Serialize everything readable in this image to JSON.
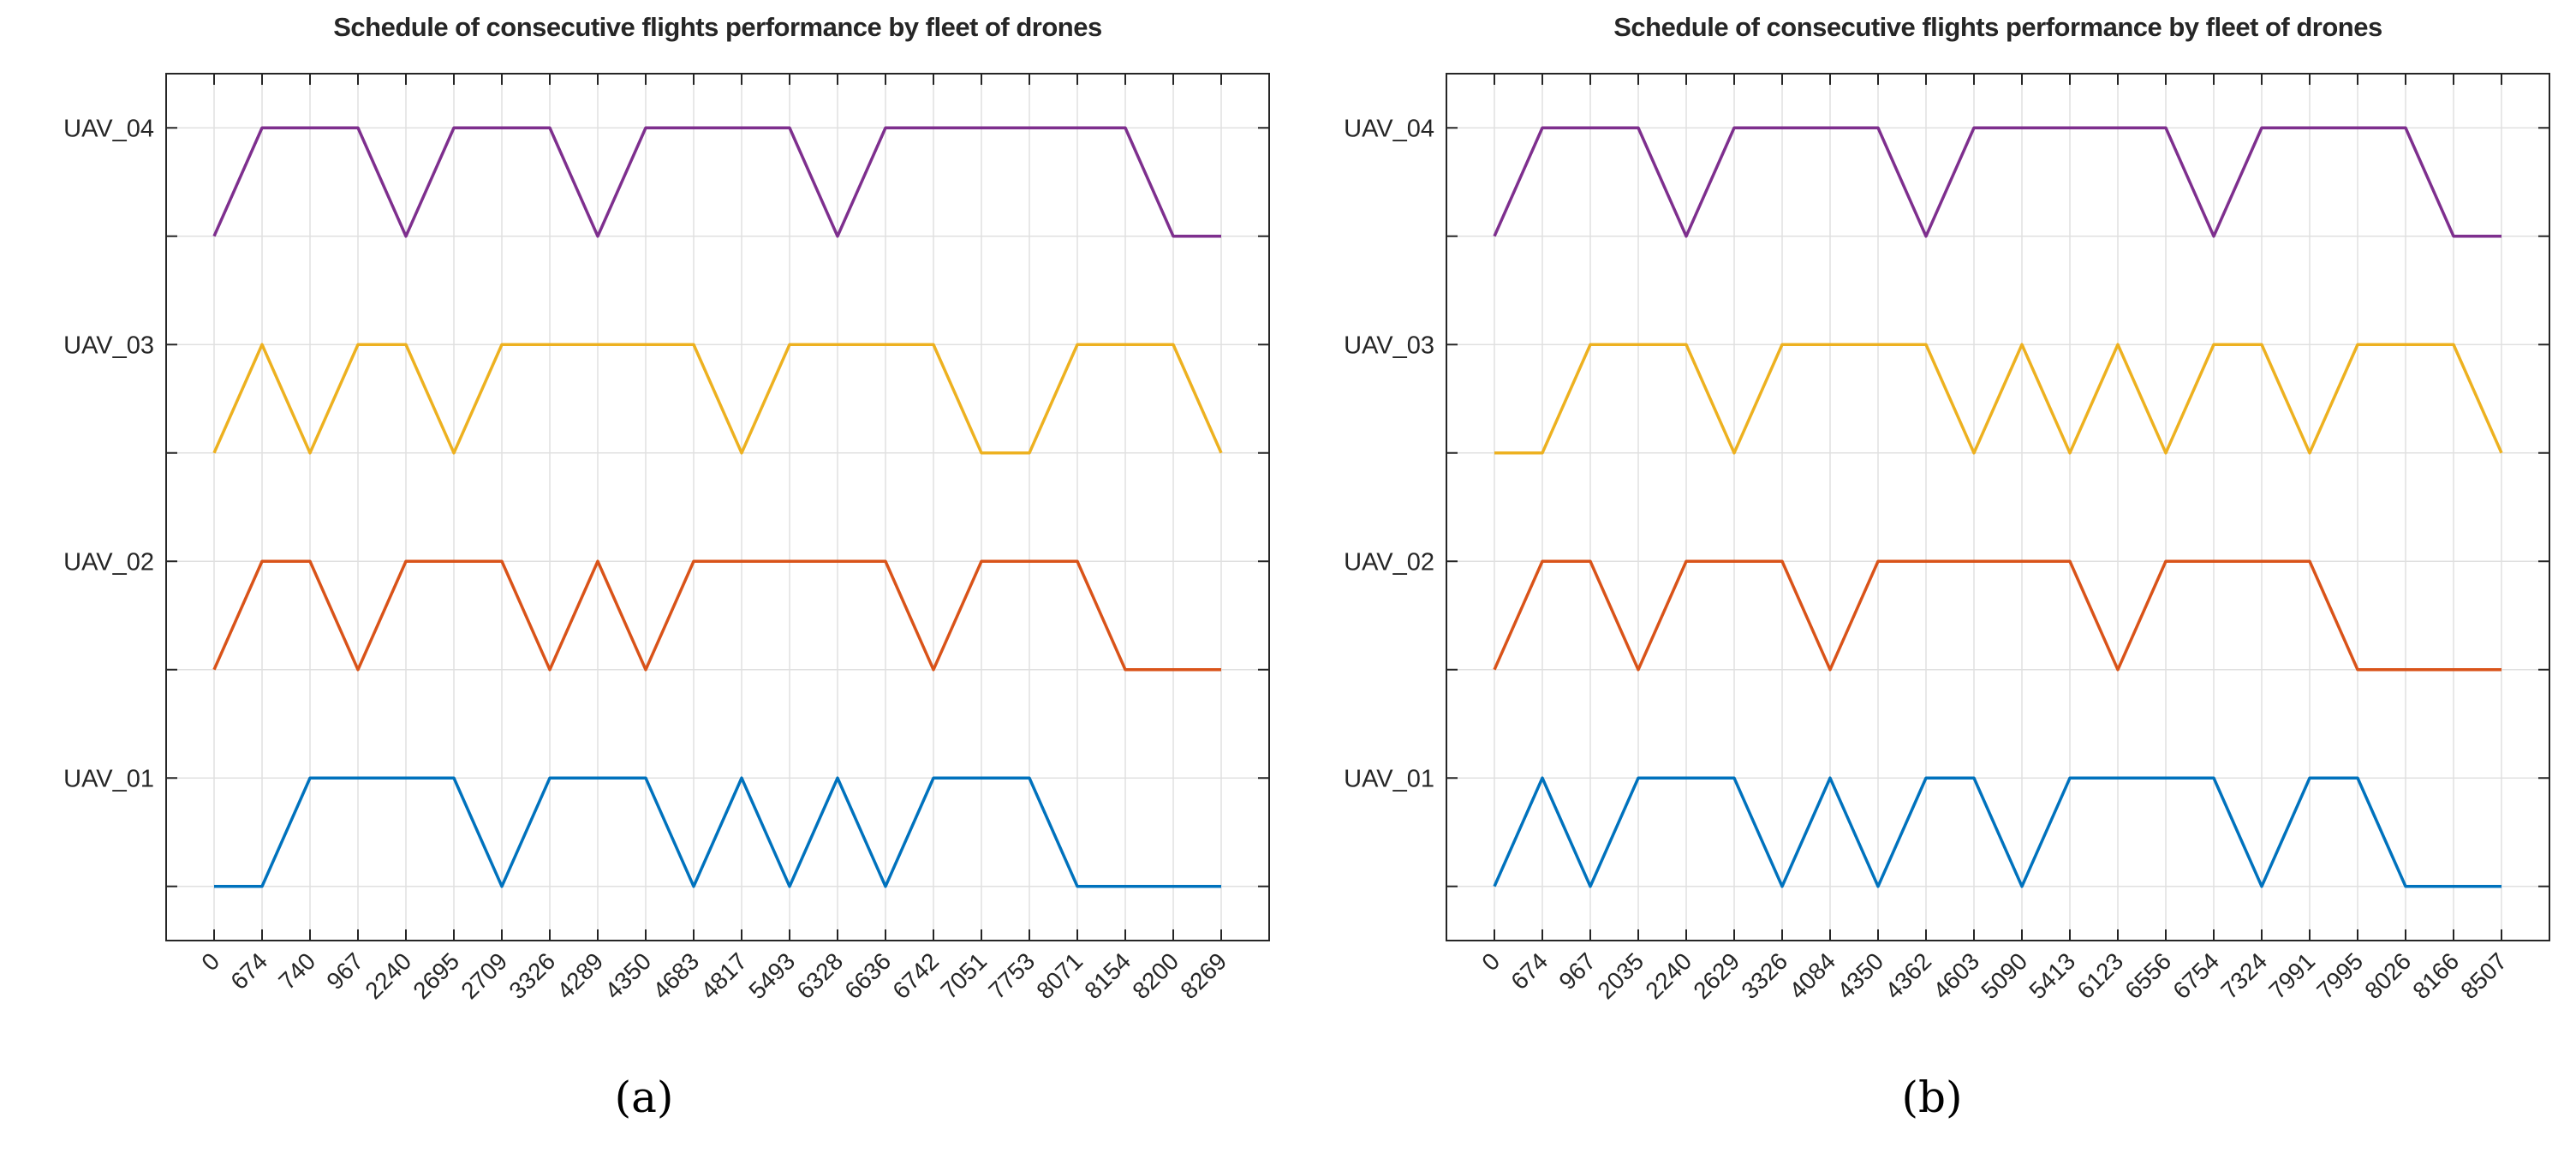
{
  "figure": {
    "background": "#ffffff",
    "text_color": "#262626",
    "grid_color": "#e0e0e0",
    "axis_color": "#262626"
  },
  "chart_data": [
    {
      "type": "line",
      "panel": "a",
      "caption": "(a)",
      "title": "Schedule of consecutive flights performance by fleet of drones",
      "x_tick_labels": [
        "0",
        "674",
        "740",
        "967",
        "2240",
        "2695",
        "2709",
        "3326",
        "4289",
        "4350",
        "4683",
        "4817",
        "5493",
        "6328",
        "6636",
        "6742",
        "7051",
        "7753",
        "8071",
        "8154",
        "8200",
        "8269"
      ],
      "y_tick_labels": [
        "UAV_01",
        "UAV_02",
        "UAV_03",
        "UAV_04"
      ],
      "xlabel": "",
      "ylabel": "",
      "grid": true,
      "legend_position": "none",
      "xlim_index": [
        -1,
        22
      ],
      "ylim": [
        0.25,
        4.25
      ],
      "x_tick_rotation_deg": 45,
      "encoding": "For series k (1=UAV_01 ... 4=UAV_04): value 1 (flying) plots at level k, value 0 (grounded) plots at level k-0.5; straight-line interpolation between consecutive ticks",
      "series": [
        {
          "name": "UAV_01",
          "color": "#0072BD",
          "flight_levels": [
            0,
            0,
            1,
            1,
            1,
            1,
            0,
            1,
            1,
            1,
            0,
            1,
            0,
            1,
            0,
            1,
            1,
            1,
            0,
            0,
            0,
            0
          ]
        },
        {
          "name": "UAV_02",
          "color": "#D95319",
          "flight_levels": [
            0,
            1,
            1,
            0,
            1,
            1,
            1,
            0,
            1,
            0,
            1,
            1,
            1,
            1,
            1,
            0,
            1,
            1,
            1,
            0,
            0,
            0
          ]
        },
        {
          "name": "UAV_03",
          "color": "#EDB120",
          "flight_levels": [
            0,
            1,
            0,
            1,
            1,
            0,
            1,
            1,
            1,
            1,
            1,
            0,
            1,
            1,
            1,
            1,
            0,
            0,
            1,
            1,
            1,
            0
          ]
        },
        {
          "name": "UAV_04",
          "color": "#7E2F8E",
          "flight_levels": [
            0,
            1,
            1,
            1,
            0,
            1,
            1,
            1,
            0,
            1,
            1,
            1,
            1,
            0,
            1,
            1,
            1,
            1,
            1,
            1,
            0,
            0
          ]
        }
      ]
    },
    {
      "type": "line",
      "panel": "b",
      "caption": "(b)",
      "title": "Schedule of consecutive flights performance by fleet of drones",
      "x_tick_labels": [
        "0",
        "674",
        "967",
        "2035",
        "2240",
        "2629",
        "3326",
        "4084",
        "4350",
        "4362",
        "4603",
        "5090",
        "5413",
        "6123",
        "6556",
        "6754",
        "7324",
        "7991",
        "7995",
        "8026",
        "8166",
        "8507"
      ],
      "y_tick_labels": [
        "UAV_01",
        "UAV_02",
        "UAV_03",
        "UAV_04"
      ],
      "xlabel": "",
      "ylabel": "",
      "grid": true,
      "legend_position": "none",
      "xlim_index": [
        -1,
        22
      ],
      "ylim": [
        0.25,
        4.25
      ],
      "x_tick_rotation_deg": 45,
      "encoding": "For series k (1=UAV_01 ... 4=UAV_04): value 1 (flying) plots at level k, value 0 (grounded) plots at level k-0.5; straight-line interpolation between consecutive ticks",
      "series": [
        {
          "name": "UAV_01",
          "color": "#0072BD",
          "flight_levels": [
            0,
            1,
            0,
            1,
            1,
            1,
            0,
            1,
            0,
            1,
            1,
            0,
            1,
            1,
            1,
            1,
            0,
            1,
            1,
            0,
            0,
            0
          ]
        },
        {
          "name": "UAV_02",
          "color": "#D95319",
          "flight_levels": [
            0,
            1,
            1,
            0,
            1,
            1,
            1,
            0,
            1,
            1,
            1,
            1,
            1,
            0,
            1,
            1,
            1,
            1,
            0,
            0,
            0,
            0
          ]
        },
        {
          "name": "UAV_03",
          "color": "#EDB120",
          "flight_levels": [
            0,
            0,
            1,
            1,
            1,
            0,
            1,
            1,
            1,
            1,
            0,
            1,
            0,
            1,
            0,
            1,
            1,
            0,
            1,
            1,
            1,
            0
          ]
        },
        {
          "name": "UAV_04",
          "color": "#7E2F8E",
          "flight_levels": [
            0,
            1,
            1,
            1,
            0,
            1,
            1,
            1,
            1,
            0,
            1,
            1,
            1,
            1,
            1,
            0,
            1,
            1,
            1,
            1,
            0,
            0
          ]
        }
      ]
    }
  ]
}
